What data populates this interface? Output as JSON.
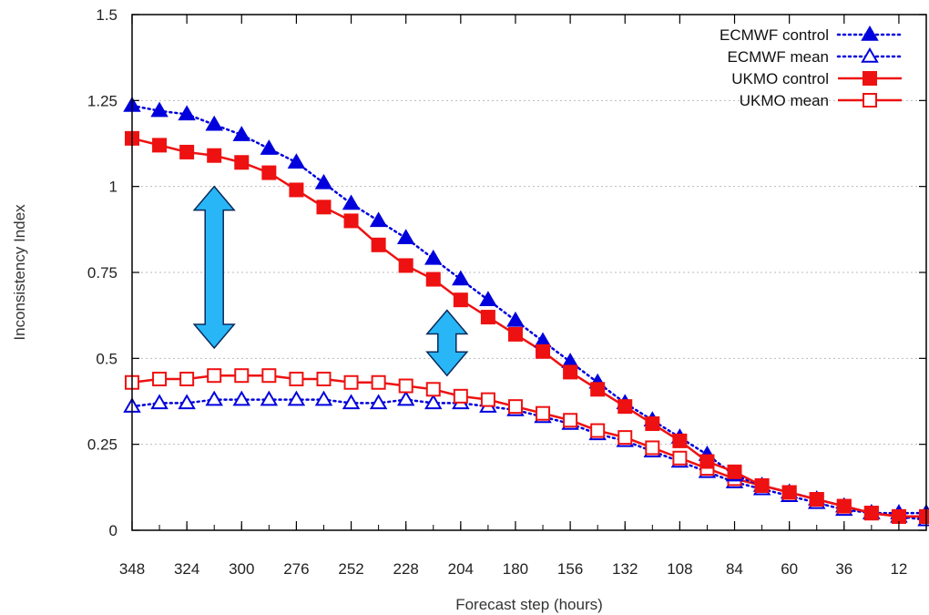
{
  "chart_data": {
    "type": "line",
    "xlabel": "Forecast step (hours)",
    "ylabel": "Inconsistency Index",
    "x": [
      348,
      336,
      324,
      312,
      300,
      288,
      276,
      264,
      252,
      240,
      228,
      216,
      204,
      192,
      180,
      168,
      156,
      144,
      132,
      120,
      108,
      96,
      84,
      72,
      60,
      48,
      36,
      24,
      12,
      0
    ],
    "x_tick_labels": [
      "348",
      "324",
      "300",
      "276",
      "252",
      "228",
      "204",
      "180",
      "156",
      "132",
      "108",
      "84",
      "60",
      "36",
      "12"
    ],
    "x_ticks": [
      348,
      324,
      300,
      276,
      252,
      228,
      204,
      180,
      156,
      132,
      108,
      84,
      60,
      36,
      12
    ],
    "x_reversed": true,
    "xlim": [
      348,
      0
    ],
    "ylim": [
      0,
      1.5
    ],
    "y_ticks": [
      0,
      0.25,
      0.5,
      0.75,
      1,
      1.25,
      1.5
    ],
    "y_tick_labels": [
      "0",
      "0.25",
      "0.5",
      "0.75",
      "1",
      "1.25",
      "1.5"
    ],
    "grid": "horizontal dotted",
    "legend_position": "top-right",
    "series": [
      {
        "name": "ECMWF control",
        "color": "#0000dd",
        "line": "dotted",
        "marker": "filled-triangle",
        "values": [
          1.235,
          1.22,
          1.21,
          1.18,
          1.15,
          1.11,
          1.07,
          1.01,
          0.95,
          0.9,
          0.85,
          0.79,
          0.73,
          0.67,
          0.61,
          0.55,
          0.49,
          0.43,
          0.37,
          0.32,
          0.27,
          0.22,
          0.16,
          0.13,
          0.11,
          0.09,
          0.07,
          0.05,
          0.05,
          0.05
        ]
      },
      {
        "name": "ECMWF mean",
        "color": "#0000dd",
        "line": "dotted",
        "marker": "open-triangle",
        "values": [
          0.36,
          0.37,
          0.37,
          0.38,
          0.38,
          0.38,
          0.38,
          0.38,
          0.37,
          0.37,
          0.38,
          0.37,
          0.37,
          0.36,
          0.35,
          0.33,
          0.31,
          0.28,
          0.26,
          0.23,
          0.2,
          0.17,
          0.14,
          0.12,
          0.1,
          0.08,
          0.06,
          0.05,
          0.04,
          0.03
        ]
      },
      {
        "name": "UKMO control",
        "color": "#ee1111",
        "line": "solid",
        "marker": "filled-square",
        "values": [
          1.14,
          1.12,
          1.1,
          1.09,
          1.07,
          1.04,
          0.99,
          0.94,
          0.9,
          0.83,
          0.77,
          0.73,
          0.67,
          0.62,
          0.57,
          0.52,
          0.46,
          0.41,
          0.36,
          0.31,
          0.26,
          0.2,
          0.17,
          0.13,
          0.11,
          0.09,
          0.07,
          0.05,
          0.04,
          0.04
        ]
      },
      {
        "name": "UKMO mean",
        "color": "#ee1111",
        "line": "solid",
        "marker": "open-square",
        "values": [
          0.43,
          0.44,
          0.44,
          0.45,
          0.45,
          0.45,
          0.44,
          0.44,
          0.43,
          0.43,
          0.42,
          0.41,
          0.39,
          0.38,
          0.36,
          0.34,
          0.32,
          0.29,
          0.27,
          0.24,
          0.21,
          0.18,
          0.15,
          0.13,
          0.11,
          0.09,
          0.07,
          0.05,
          0.04,
          0.04
        ]
      }
    ],
    "annotations": [
      {
        "type": "double-arrow",
        "color": "#29b6f6",
        "x": 312,
        "y_from": 0.53,
        "y_to": 1.0
      },
      {
        "type": "double-arrow",
        "color": "#29b6f6",
        "x": 210,
        "y_from": 0.45,
        "y_to": 0.64
      }
    ]
  }
}
